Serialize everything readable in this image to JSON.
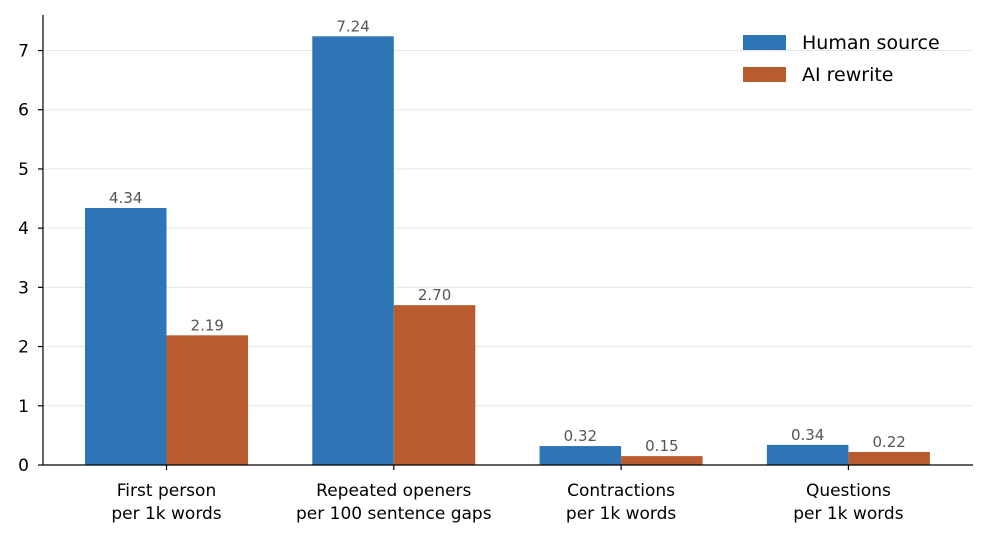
{
  "chart_data": {
    "type": "bar",
    "categories": [
      [
        "First person",
        "per 1k words"
      ],
      [
        "Repeated openers",
        "per 100 sentence gaps"
      ],
      [
        "Contractions",
        "per 1k words"
      ],
      [
        "Questions",
        "per 1k words"
      ]
    ],
    "series": [
      {
        "name": "Human source",
        "color": "#2e75b6",
        "values": [
          4.34,
          7.24,
          0.32,
          0.34
        ],
        "labels": [
          "4.34",
          "7.24",
          "0.32",
          "0.34"
        ]
      },
      {
        "name": "AI rewrite",
        "color": "#b85c30",
        "values": [
          2.19,
          2.7,
          0.15,
          0.22
        ],
        "labels": [
          "2.19",
          "2.70",
          "0.15",
          "0.22"
        ]
      }
    ],
    "yticks": [
      "0",
      "1",
      "2",
      "3",
      "4",
      "5",
      "6",
      "7"
    ],
    "ylim": [
      0,
      7.6
    ],
    "grid": "horizontal",
    "legend_position": "top-right",
    "title": "",
    "xlabel": "",
    "ylabel": ""
  }
}
